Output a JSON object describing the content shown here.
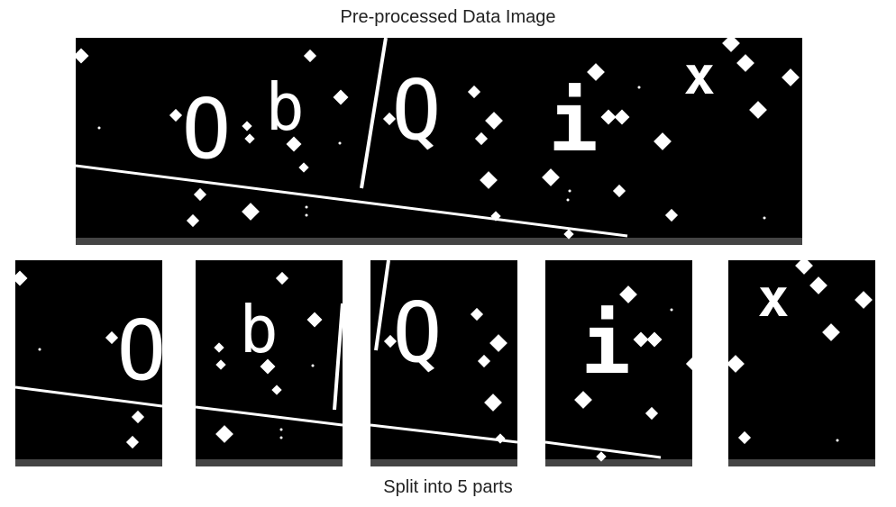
{
  "top_caption": "Pre-processed Data Image",
  "bottom_caption": "Split into 5 parts",
  "characters": [
    "O",
    "b",
    "Q",
    "i",
    "x"
  ],
  "parts": [
    {
      "char": "O"
    },
    {
      "char": "b"
    },
    {
      "char": "Q"
    },
    {
      "char": "i"
    },
    {
      "char": "x"
    }
  ],
  "colors": {
    "background": "#ffffff",
    "image_background": "#000000",
    "foreground": "#ffffff",
    "bottom_strip": "#444444",
    "text": "#222222"
  }
}
